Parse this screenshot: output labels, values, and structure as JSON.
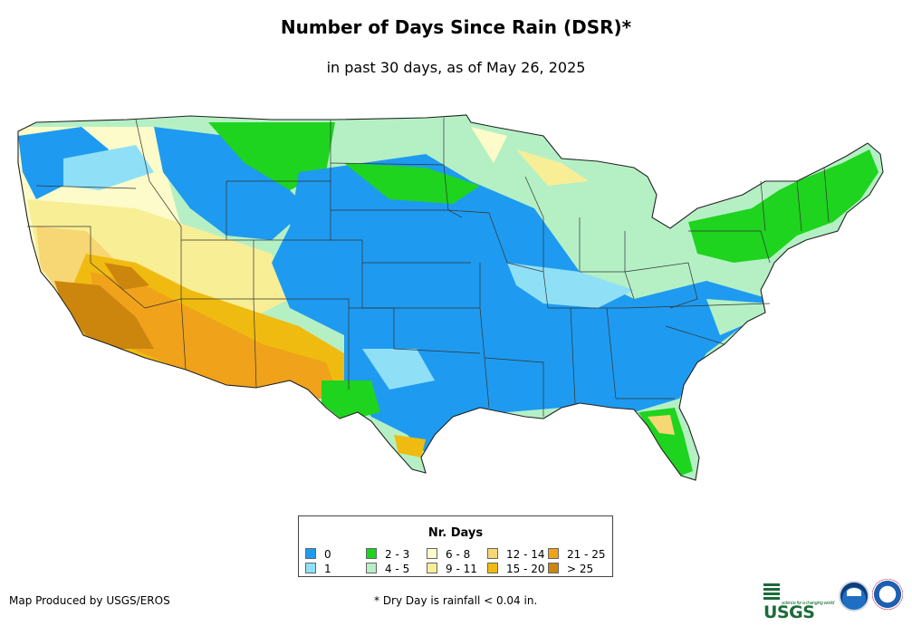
{
  "title": "Number of Days Since Rain (DSR)*",
  "subtitle": "in past 30 days, as of May 26, 2025",
  "legend": {
    "title": "Nr. Days",
    "items": [
      {
        "label": "0",
        "color": "#1e9bf0"
      },
      {
        "label": "1",
        "color": "#8fe0f7"
      },
      {
        "label": "2 - 3",
        "color": "#1ed41e"
      },
      {
        "label": "4 - 5",
        "color": "#b5f0c5"
      },
      {
        "label": "6 - 8",
        "color": "#fdfbc9"
      },
      {
        "label": "9 - 11",
        "color": "#f8ee96"
      },
      {
        "label": "12 - 14",
        "color": "#f7d773"
      },
      {
        "label": "15 - 20",
        "color": "#f0bb10"
      },
      {
        "label": "21 - 25",
        "color": "#f0a21b"
      },
      {
        "label": "> 25",
        "color": "#cc860d"
      }
    ]
  },
  "credit": "Map Produced by USGS/EROS",
  "footnote": "* Dry Day is rainfall < 0.04 in.",
  "logos": {
    "usgs": "USGS",
    "usgs_tagline": "science for a changing world"
  }
}
